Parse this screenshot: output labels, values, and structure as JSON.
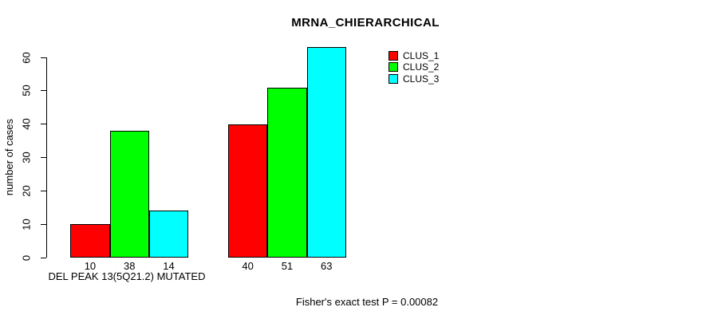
{
  "chart_data": {
    "type": "bar",
    "title": "MRNA_CHIERARCHICAL",
    "ylabel": "number of cases",
    "xlabel": "DEL PEAK 13(5Q21.2) MUTATED",
    "annotation": "Fisher's exact test P = 0.00082",
    "ylim": [
      0,
      60
    ],
    "yticks": [
      0,
      10,
      20,
      30,
      40,
      50,
      60
    ],
    "group_count": 2,
    "series": [
      {
        "name": "CLUS_1",
        "color": "#ff0000",
        "values": [
          10,
          40
        ]
      },
      {
        "name": "CLUS_2",
        "color": "#00ff00",
        "values": [
          38,
          51
        ]
      },
      {
        "name": "CLUS_3",
        "color": "#00ffff",
        "values": [
          14,
          63
        ]
      }
    ],
    "bar_value_labels": [
      [
        10,
        38,
        14
      ],
      [
        40,
        51,
        63
      ]
    ],
    "legend_position": "top-right",
    "grid": false,
    "axis_color": "#000000",
    "background_color": "#ffffff"
  }
}
